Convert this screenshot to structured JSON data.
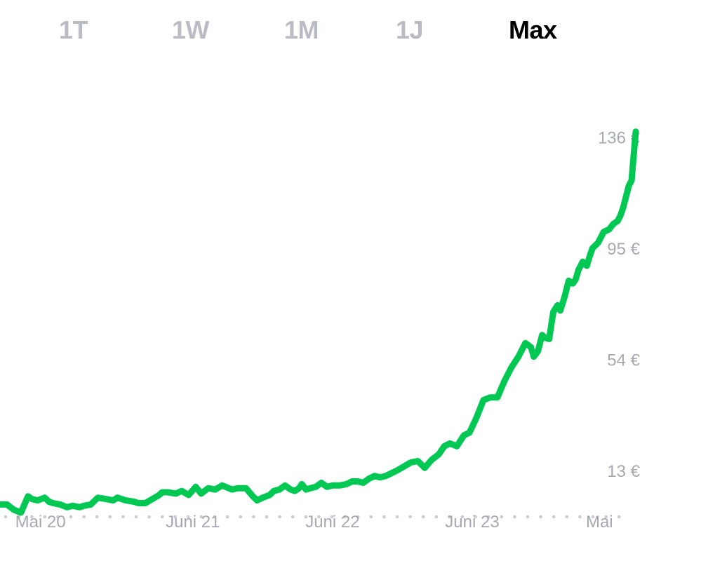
{
  "tabs": [
    {
      "label": "1T",
      "active": false
    },
    {
      "label": "1W",
      "active": false
    },
    {
      "label": "1M",
      "active": false
    },
    {
      "label": "1J",
      "active": false
    },
    {
      "label": "Max",
      "active": true
    }
  ],
  "colors": {
    "line": "#00c853",
    "tab_inactive": "#b9bcc4",
    "tab_active": "#000000",
    "axis_label": "#a6a9b1",
    "dots": "#c9ccd2"
  },
  "chart_data": {
    "type": "line",
    "title": "",
    "xlabel": "",
    "ylabel": "",
    "y_tick_labels": [
      "136 €",
      "95 €",
      "54 €",
      "13 €"
    ],
    "y_ticks": [
      136,
      95,
      54,
      13
    ],
    "x_tick_labels": [
      "Mai 20",
      "Juni 21",
      "Juni 22",
      "Juni 23",
      "Mai"
    ],
    "x_ticks": [
      2020.33,
      2021.42,
      2022.42,
      2023.42,
      2024.33
    ],
    "xlim": [
      2020.04,
      2024.62
    ],
    "ylim": [
      -10,
      140
    ],
    "grid": false,
    "legend": "none",
    "series": [
      {
        "x": [
          2020.04,
          2020.09,
          2020.14,
          2020.19,
          2020.24,
          2020.27,
          2020.31,
          2020.36,
          2020.39,
          2020.42,
          2020.47,
          2020.52,
          2020.56,
          2020.61,
          2020.64,
          2020.69,
          2020.74,
          2020.8,
          2020.85,
          2020.88,
          2020.94,
          2021.0,
          2021.03,
          2021.08,
          2021.13,
          2021.18,
          2021.2,
          2021.24,
          2021.3,
          2021.34,
          2021.39,
          2021.44,
          2021.48,
          2021.53,
          2021.58,
          2021.63,
          2021.7,
          2021.74,
          2021.8,
          2021.85,
          2021.88,
          2021.92,
          2021.97,
          2022.0,
          2022.04,
          2022.08,
          2022.12,
          2022.15,
          2022.18,
          2022.2,
          2022.23,
          2022.26,
          2022.3,
          2022.34,
          2022.38,
          2022.42,
          2022.47,
          2022.52,
          2022.56,
          2022.6,
          2022.64,
          2022.68,
          2022.72,
          2022.76,
          2022.8,
          2022.84,
          2022.88,
          2022.93,
          2022.98,
          2023.03,
          2023.08,
          2023.13,
          2023.18,
          2023.22,
          2023.26,
          2023.31,
          2023.36,
          2023.4,
          2023.45,
          2023.5,
          2023.55,
          2023.6,
          2023.65,
          2023.7,
          2023.75,
          2023.8,
          2023.84,
          2023.86,
          2023.89,
          2023.92,
          2023.94,
          2023.97,
          2024.0,
          2024.03,
          2024.05,
          2024.08,
          2024.11,
          2024.14,
          2024.16,
          2024.18,
          2024.21,
          2024.24,
          2024.26,
          2024.28,
          2024.32,
          2024.36,
          2024.4,
          2024.43,
          2024.46,
          2024.48,
          2024.5,
          2024.52,
          2024.54,
          2024.56,
          2024.57,
          2024.58,
          2024.59
        ],
        "values": [
          0.5,
          0.5,
          -1.5,
          -2.5,
          3.5,
          2.5,
          2.0,
          3.0,
          1.5,
          1.0,
          0.5,
          -0.5,
          0.0,
          -0.5,
          0.0,
          0.5,
          3.0,
          2.5,
          2.0,
          3.0,
          2.0,
          1.5,
          1.0,
          1.0,
          2.5,
          4.0,
          5.0,
          5.0,
          4.5,
          5.5,
          4.0,
          7.0,
          4.5,
          6.5,
          6.0,
          7.5,
          6.0,
          6.5,
          6.5,
          3.5,
          2.0,
          3.0,
          4.0,
          5.5,
          6.0,
          7.5,
          6.0,
          5.5,
          6.5,
          8.0,
          6.0,
          6.5,
          7.0,
          8.5,
          7.0,
          7.5,
          7.5,
          8.0,
          9.0,
          9.0,
          8.5,
          10.0,
          11.0,
          10.5,
          11.0,
          12.0,
          13.0,
          14.5,
          16.0,
          16.5,
          14.0,
          17.0,
          19.0,
          22.0,
          23.0,
          22.0,
          26.0,
          27.0,
          32.5,
          39.0,
          40.0,
          40.0,
          46.0,
          51.0,
          55.0,
          60.0,
          58.5,
          55.0,
          57.0,
          63.0,
          62.0,
          61.5,
          71.5,
          74.0,
          72.0,
          77.0,
          83.0,
          82.0,
          83.5,
          87.0,
          90.0,
          88.5,
          92.0,
          95.0,
          97.0,
          101.0,
          102.0,
          104.0,
          105.0,
          107.0,
          110.0,
          114.0,
          118.0,
          120.0,
          126.0,
          132.0,
          138.0
        ]
      }
    ]
  }
}
